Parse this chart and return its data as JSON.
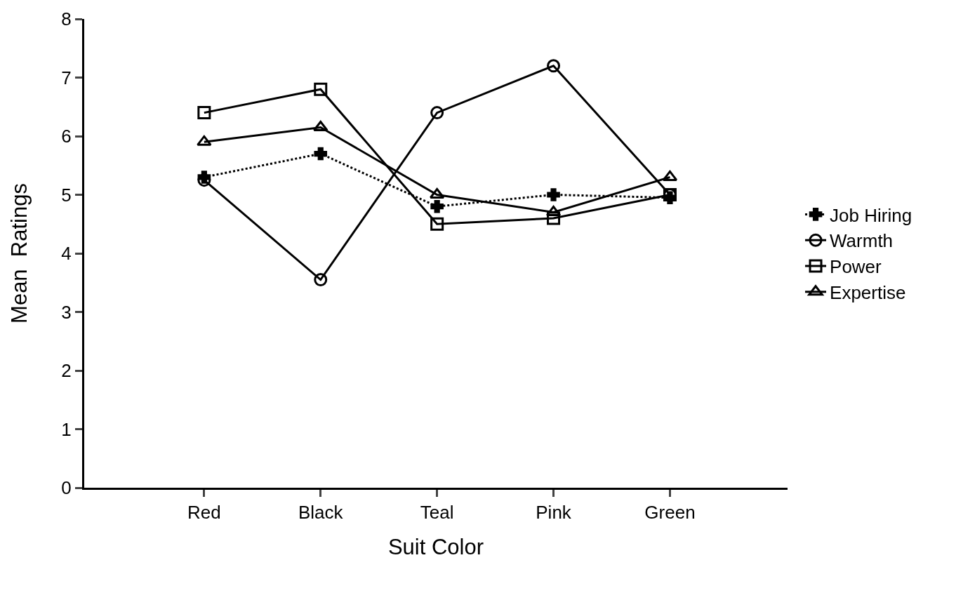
{
  "chart_data": {
    "type": "line",
    "xlabel": "Suit Color",
    "ylabel": "Mean  Ratings",
    "categories": [
      "Red",
      "Black",
      "Teal",
      "Pink",
      "Green"
    ],
    "series": [
      {
        "name": "Job Hiring",
        "color": "#000000",
        "marker": "cross",
        "line_style": "dotted",
        "values": [
          5.3,
          5.7,
          4.8,
          5.0,
          4.95
        ]
      },
      {
        "name": "Warmth",
        "color": "#000000",
        "marker": "circle",
        "line_style": "solid",
        "values": [
          5.25,
          3.55,
          6.4,
          7.2,
          5.0
        ]
      },
      {
        "name": "Power",
        "color": "#000000",
        "marker": "square",
        "line_style": "solid",
        "values": [
          6.4,
          6.8,
          4.5,
          4.6,
          5.0
        ]
      },
      {
        "name": "Expertise",
        "color": "#000000",
        "marker": "triangle",
        "line_style": "solid",
        "values": [
          5.9,
          6.15,
          5.0,
          4.7,
          5.3
        ]
      }
    ],
    "ylim": [
      0,
      8
    ],
    "yticks": [
      0,
      1,
      2,
      3,
      4,
      5,
      6,
      7,
      8
    ],
    "legend": "right"
  }
}
